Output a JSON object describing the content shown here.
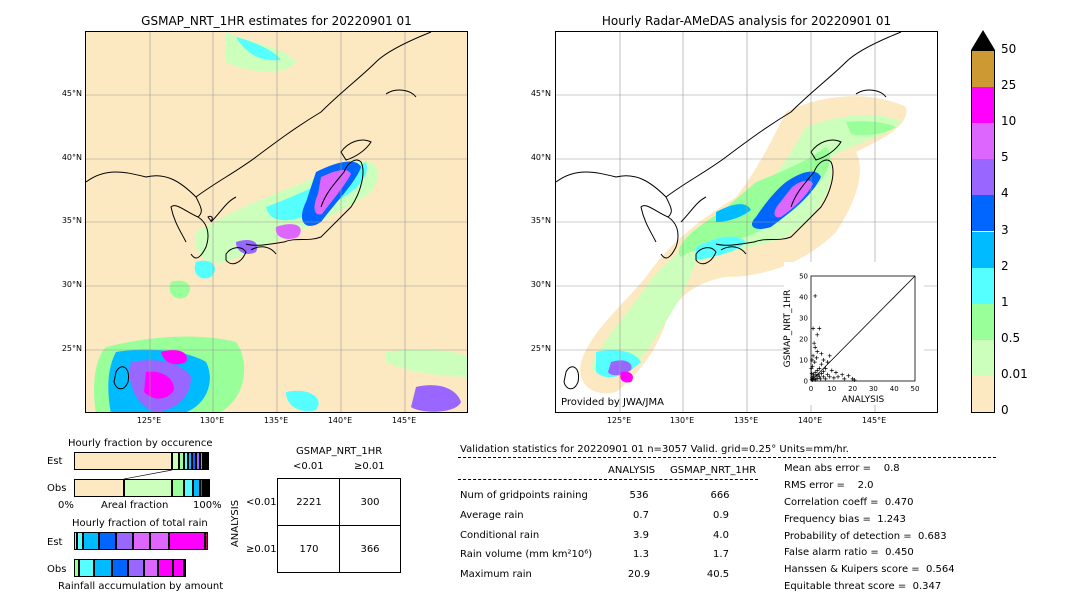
{
  "left_map": {
    "title": "GSMAP_NRT_1HR estimates for 20220901 01",
    "lat_labels": [
      "45°N",
      "40°N",
      "35°N",
      "30°N",
      "25°N"
    ],
    "lon_labels": [
      "125°E",
      "130°E",
      "135°E",
      "140°E",
      "145°E"
    ]
  },
  "right_map": {
    "title": "Hourly Radar-AMeDAS analysis for 20220901 01",
    "lat_labels": [
      "45°N",
      "40°N",
      "35°N",
      "30°N",
      "25°N"
    ],
    "lon_labels": [
      "125°E",
      "130°E",
      "135°E",
      "140°E",
      "145°E"
    ],
    "credit": "Provided by JWA/JMA"
  },
  "colorbar": {
    "labels": [
      "50",
      "25",
      "10",
      "5",
      "4",
      "3",
      "2",
      "1",
      "0.5",
      "0.01",
      "0"
    ],
    "colors": [
      "#cc9933",
      "#ff00ff",
      "#dd66ff",
      "#9966ff",
      "#0066ff",
      "#00bbff",
      "#55ffff",
      "#99ff99",
      "#ccffbb",
      "#fde9c1"
    ],
    "arrow_color": "#000000"
  },
  "chart_data": [
    {
      "type": "scatter",
      "title": "",
      "xlabel": "ANALYSIS",
      "ylabel": "GSMAP_NRT_1HR",
      "xlim": [
        0,
        50
      ],
      "ylim": [
        0,
        50
      ],
      "ticks": [
        "0",
        "10",
        "20",
        "30",
        "40",
        "50"
      ],
      "points": [
        [
          0.3,
          0.8
        ],
        [
          0.5,
          1.5
        ],
        [
          0.8,
          0.5
        ],
        [
          1,
          2
        ],
        [
          1.2,
          3
        ],
        [
          1.5,
          1
        ],
        [
          2,
          4
        ],
        [
          2.2,
          0.6
        ],
        [
          2.5,
          2.5
        ],
        [
          3,
          1.2
        ],
        [
          3,
          5
        ],
        [
          3.5,
          3
        ],
        [
          4,
          2
        ],
        [
          4,
          6
        ],
        [
          4.5,
          1
        ],
        [
          5,
          3.5
        ],
        [
          5,
          8
        ],
        [
          6,
          2
        ],
        [
          6,
          4.5
        ],
        [
          7,
          1
        ],
        [
          7,
          6
        ],
        [
          8,
          3
        ],
        [
          8,
          9
        ],
        [
          9,
          2
        ],
        [
          10,
          5
        ],
        [
          11,
          1.5
        ],
        [
          12,
          4
        ],
        [
          13,
          2
        ],
        [
          15,
          3
        ],
        [
          16,
          1
        ],
        [
          18,
          2.5
        ],
        [
          20,
          1
        ],
        [
          0.5,
          10
        ],
        [
          1,
          12
        ],
        [
          1.5,
          18
        ],
        [
          2,
          16
        ],
        [
          3,
          22
        ],
        [
          4,
          25
        ],
        [
          2,
          40.5
        ],
        [
          1,
          25
        ],
        [
          5,
          13
        ],
        [
          6,
          10
        ],
        [
          3,
          14
        ],
        [
          0.2,
          6
        ],
        [
          0.7,
          7
        ],
        [
          1.8,
          9
        ],
        [
          2.7,
          11
        ],
        [
          0.4,
          3.5
        ],
        [
          9,
          12
        ],
        [
          20.9,
          0.5
        ]
      ]
    },
    {
      "type": "bar",
      "title": "Hourly fraction by occurence",
      "rows": [
        "Est",
        "Obs"
      ],
      "segments": {
        "Est": [
          0.73,
          0.05,
          0.04,
          0.03,
          0.03,
          0.03,
          0.03,
          0.02,
          0.02,
          0.01,
          0.01
        ],
        "Obs": [
          0.37,
          0.36,
          0.09,
          0.07,
          0.05,
          0.02,
          0.02,
          0.01,
          0.005,
          0.004,
          0.001
        ]
      },
      "xlabel": "Areal fraction",
      "xtick_left": "0%",
      "xtick_right": "100%"
    },
    {
      "type": "bar",
      "title": "Hourly fraction of total rain",
      "rows": [
        "Est",
        "Obs"
      ],
      "segments": {
        "Est": [
          0.02,
          0.05,
          0.12,
          0.12,
          0.13,
          0.13,
          0.14,
          0.27,
          0.02
        ],
        "Obs": [
          0.04,
          0.11,
          0.13,
          0.12,
          0.12,
          0.11,
          0.11,
          0.08,
          0.0
        ]
      },
      "xlabel": "Rainfall accumulation by amount"
    }
  ],
  "contingency": {
    "top_label": "GSMAP_NRT_1HR",
    "col_labels": [
      "<0.01",
      "≥0.01"
    ],
    "side_label": "ANALYSIS",
    "row_labels": [
      "<0.01",
      "≥0.01"
    ],
    "cells": [
      "2221",
      "300",
      "170",
      "366"
    ]
  },
  "validation": {
    "header": "Validation statistics for 20220901 01  n=3057 Valid. grid=0.25° Units=mm/hr.",
    "col_analysis": "ANALYSIS",
    "col_gsmap": "GSMAP_NRT_1HR",
    "rows": [
      {
        "label": "Num of gridpoints raining",
        "a": "536",
        "g": "666"
      },
      {
        "label": "Average rain",
        "a": "0.7",
        "g": "0.9"
      },
      {
        "label": "Conditional rain",
        "a": "3.9",
        "g": "4.0"
      },
      {
        "label": "Rain volume (mm km²10⁶)",
        "a": "1.3",
        "g": "1.7"
      },
      {
        "label": "Maximum rain",
        "a": "20.9",
        "g": "40.5"
      }
    ],
    "scores": [
      "Mean abs error =    0.8",
      "RMS error =    2.0",
      "Correlation coeff =  0.470",
      "Frequency bias =  1.243",
      "Probability of detection =  0.683",
      "False alarm ratio =  0.450",
      "Hanssen & Kuipers score =  0.564",
      "Equitable threat score =  0.347"
    ]
  }
}
